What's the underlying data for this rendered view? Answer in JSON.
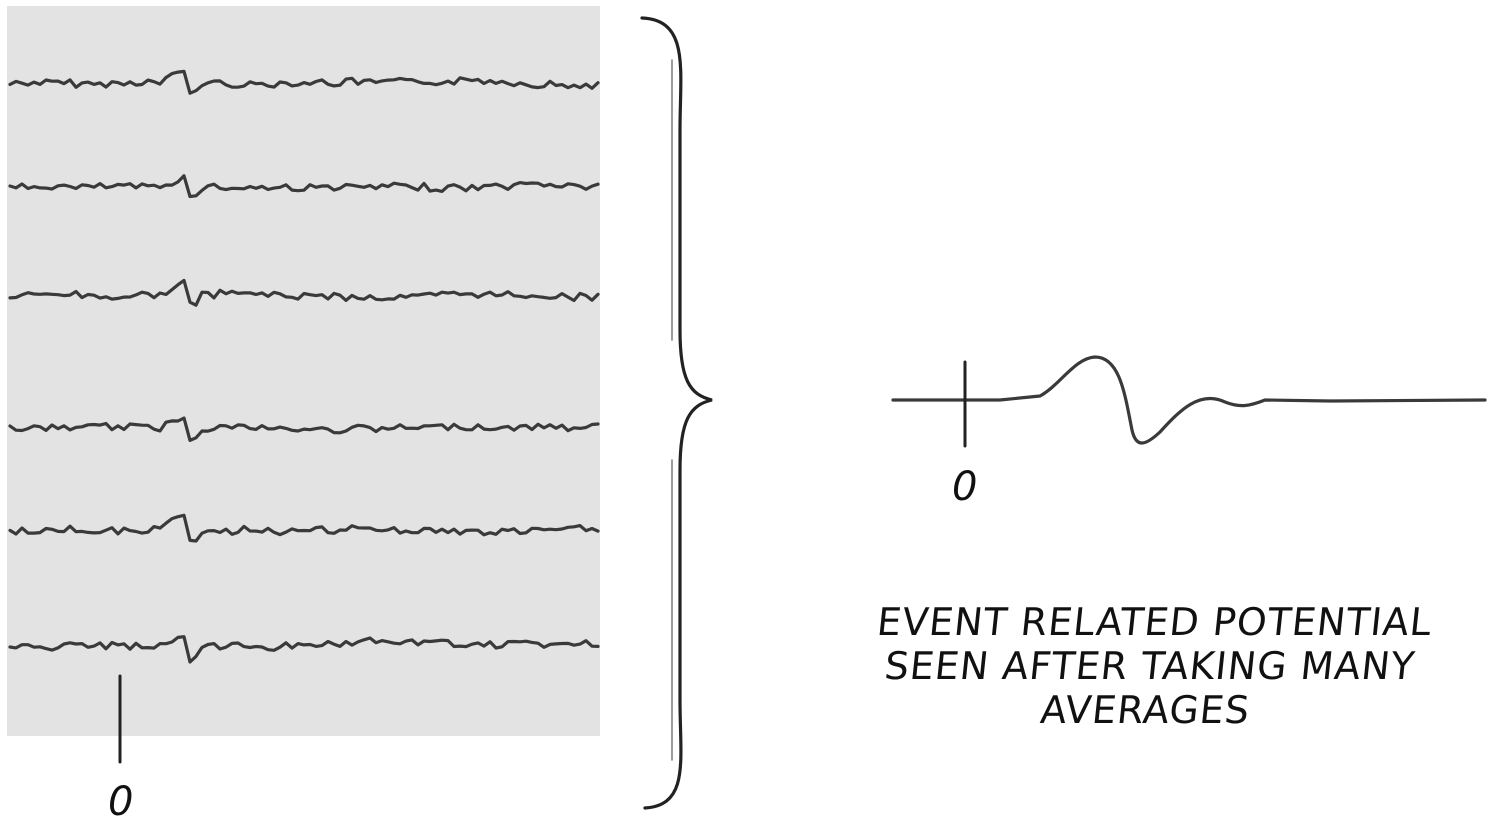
{
  "left_panel": {
    "trial_count": 6,
    "zero_label": "0"
  },
  "averaged_waveform": {
    "zero_label": "0"
  },
  "caption": {
    "lines": [
      "EVENT RELATED POTENTIAL",
      "SEEN AFTER TAKING MANY",
      "AVERAGES"
    ]
  },
  "colors": {
    "panel_background": "#e3e3e3",
    "trace": "#3a3a3a",
    "ink": "#111111"
  }
}
